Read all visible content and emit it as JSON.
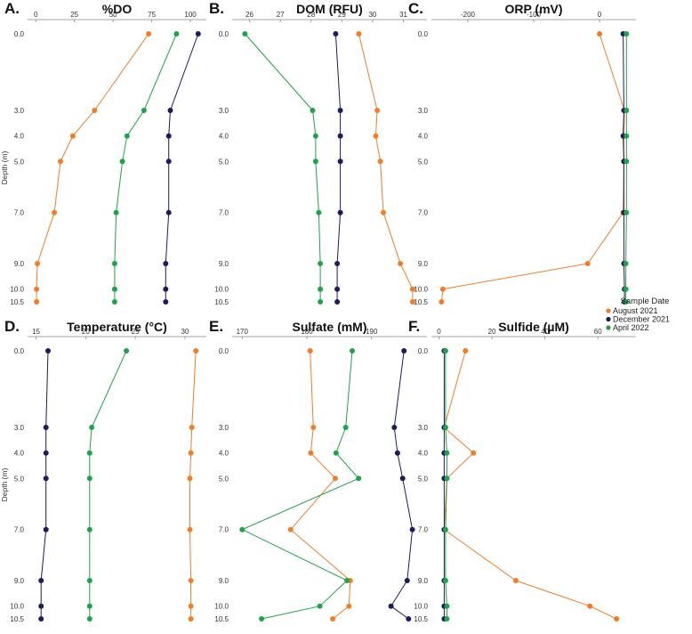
{
  "colors": {
    "August 2021": "#ef7e2b",
    "December 2021": "#1b1b5e",
    "April 2022": "#21a24a"
  },
  "legend": {
    "title": "Sample Date",
    "entries": [
      {
        "label": "August 2021",
        "color": "#ef7e2b"
      },
      {
        "label": "December 2021",
        "color": "#1b1b5e"
      },
      {
        "label": "April 2022",
        "color": "#21a24a"
      }
    ]
  },
  "chart_data": [
    {
      "type": "line",
      "panel": "A.",
      "title": "%DO",
      "xlabel": "",
      "ylabel": "Depth (m)",
      "xlim": [
        -3,
        108
      ],
      "xticks": [
        0,
        25,
        50,
        75,
        100
      ],
      "ylim": [
        0,
        10.5
      ],
      "yticks": [
        0.0,
        3.0,
        4.0,
        5.0,
        7.0,
        9.0,
        10.0,
        10.5
      ],
      "series": [
        {
          "name": "August 2021",
          "points": [
            [
              73,
              0
            ],
            [
              38,
              3
            ],
            [
              24,
              4
            ],
            [
              16,
              5
            ],
            [
              12,
              7
            ],
            [
              1,
              9
            ],
            [
              0.5,
              10
            ],
            [
              0.5,
              10.5
            ]
          ]
        },
        {
          "name": "December 2021",
          "points": [
            [
              105,
              0
            ],
            [
              87,
              3
            ],
            [
              86,
              4
            ],
            [
              86,
              5
            ],
            [
              86,
              7
            ],
            [
              84,
              9
            ],
            [
              84,
              10
            ],
            [
              84,
              10.5
            ]
          ]
        },
        {
          "name": "April 2022",
          "points": [
            [
              91,
              0
            ],
            [
              70,
              3
            ],
            [
              59,
              4
            ],
            [
              56,
              5
            ],
            [
              52,
              7
            ],
            [
              51,
              9
            ],
            [
              51,
              10
            ],
            [
              51,
              10.5
            ]
          ]
        }
      ]
    },
    {
      "type": "line",
      "panel": "B.",
      "title": "DOM (RFU)",
      "xlabel": "",
      "ylabel": "",
      "xlim": [
        25.55,
        31.65
      ],
      "xticks": [
        26,
        27,
        28,
        29,
        30,
        31
      ],
      "ylim": [
        0,
        10.5
      ],
      "yticks": [
        0.0,
        3.0,
        4.0,
        5.0,
        7.0,
        9.0,
        10.0,
        10.5
      ],
      "series": [
        {
          "name": "August 2021",
          "points": [
            [
              29.55,
              0
            ],
            [
              30.15,
              3
            ],
            [
              30.1,
              4
            ],
            [
              30.25,
              5
            ],
            [
              30.35,
              7
            ],
            [
              30.9,
              9
            ],
            [
              31.3,
              10
            ],
            [
              31.3,
              10.5
            ]
          ]
        },
        {
          "name": "December 2021",
          "points": [
            [
              28.8,
              0
            ],
            [
              28.95,
              3
            ],
            [
              28.95,
              4
            ],
            [
              28.95,
              5
            ],
            [
              28.95,
              7
            ],
            [
              28.85,
              9
            ],
            [
              28.85,
              10
            ],
            [
              28.85,
              10.5
            ]
          ]
        },
        {
          "name": "April 2022",
          "points": [
            [
              25.85,
              0
            ],
            [
              28.05,
              3
            ],
            [
              28.15,
              4
            ],
            [
              28.15,
              5
            ],
            [
              28.25,
              7
            ],
            [
              28.3,
              9
            ],
            [
              28.3,
              10
            ],
            [
              28.3,
              10.5
            ]
          ]
        }
      ]
    },
    {
      "type": "line",
      "panel": "C.",
      "title": "ORP (mV)",
      "xlabel": "",
      "ylabel": "",
      "xlim": [
        -250,
        50
      ],
      "xticks": [
        -200,
        -100,
        0
      ],
      "ylim": [
        0,
        10.5
      ],
      "yticks": [
        0.0,
        3.0,
        4.0,
        5.0,
        7.0,
        9.0,
        10.0,
        10.5
      ],
      "series": [
        {
          "name": "August 2021",
          "points": [
            [
              0,
              0
            ],
            [
              38,
              3
            ],
            [
              37,
              4
            ],
            [
              37,
              5
            ],
            [
              36,
              7
            ],
            [
              -18,
              9
            ],
            [
              -238,
              10
            ],
            [
              -240,
              10.5
            ]
          ]
        },
        {
          "name": "December 2021",
          "points": [
            [
              36,
              0
            ],
            [
              37,
              3
            ],
            [
              36,
              4
            ],
            [
              37,
              5
            ],
            [
              37,
              7
            ],
            [
              37,
              9
            ],
            [
              38,
              10
            ],
            [
              38,
              10.5
            ]
          ]
        },
        {
          "name": "April 2022",
          "points": [
            [
              41,
              0
            ],
            [
              41,
              3
            ],
            [
              41,
              4
            ],
            [
              41,
              5
            ],
            [
              41,
              7
            ],
            [
              40,
              9
            ],
            [
              40,
              10
            ],
            [
              40,
              10.5
            ]
          ]
        }
      ]
    },
    {
      "type": "line",
      "panel": "D.",
      "title": "Temperature (°C)",
      "xlabel": "",
      "ylabel": "Depth (m)",
      "xlim": [
        14.5,
        31.8
      ],
      "xticks": [
        15,
        20,
        25,
        30
      ],
      "ylim": [
        0,
        10.5
      ],
      "yticks": [
        0.0,
        3.0,
        4.0,
        5.0,
        7.0,
        9.0,
        10.0,
        10.5
      ],
      "series": [
        {
          "name": "August 2021",
          "points": [
            [
              31.1,
              0
            ],
            [
              30.7,
              3
            ],
            [
              30.6,
              4
            ],
            [
              30.5,
              5
            ],
            [
              30.5,
              7
            ],
            [
              30.6,
              9
            ],
            [
              30.6,
              10
            ],
            [
              30.6,
              10.5
            ]
          ]
        },
        {
          "name": "December 2021",
          "points": [
            [
              16.2,
              0
            ],
            [
              16.0,
              3
            ],
            [
              16.0,
              4
            ],
            [
              16.0,
              5
            ],
            [
              16.0,
              7
            ],
            [
              15.5,
              9
            ],
            [
              15.5,
              10
            ],
            [
              15.5,
              10.5
            ]
          ]
        },
        {
          "name": "April 2022",
          "points": [
            [
              24.1,
              0
            ],
            [
              20.6,
              3
            ],
            [
              20.4,
              4
            ],
            [
              20.4,
              5
            ],
            [
              20.4,
              7
            ],
            [
              20.4,
              9
            ],
            [
              20.4,
              10
            ],
            [
              20.4,
              10.5
            ]
          ]
        }
      ]
    },
    {
      "type": "line",
      "panel": "E.",
      "title": "Sulfate (mM)",
      "xlabel": "",
      "ylabel": "",
      "xlim": [
        169,
        198
      ],
      "xticks": [
        170,
        180,
        190
      ],
      "ylim": [
        0,
        10.5
      ],
      "yticks": [
        0.0,
        3.0,
        4.0,
        5.0,
        7.0,
        9.0,
        10.0,
        10.5
      ],
      "series": [
        {
          "name": "August 2021",
          "points": [
            [
              180.5,
              0
            ],
            [
              181,
              3
            ],
            [
              180.6,
              4
            ],
            [
              184.4,
              5
            ],
            [
              177.5,
              7
            ],
            [
              186.7,
              9
            ],
            [
              186.5,
              10
            ],
            [
              184,
              10.5
            ]
          ]
        },
        {
          "name": "December 2021",
          "points": [
            [
              195,
              0
            ],
            [
              193.5,
              3
            ],
            [
              194,
              4
            ],
            [
              194.8,
              5
            ],
            [
              196.3,
              7
            ],
            [
              195.5,
              9
            ],
            [
              193,
              10
            ],
            [
              195.7,
              10.5
            ]
          ]
        },
        {
          "name": "April 2022",
          "points": [
            [
              187,
              0
            ],
            [
              186,
              3
            ],
            [
              184.5,
              4
            ],
            [
              188,
              5
            ],
            [
              170,
              7
            ],
            [
              186.2,
              9
            ],
            [
              182,
              10
            ],
            [
              173,
              10.5
            ]
          ]
        }
      ]
    },
    {
      "type": "line",
      "panel": "F.",
      "title": "Sulfide (µM)",
      "xlabel": "",
      "ylabel": "",
      "xlim": [
        -1.5,
        73
      ],
      "xticks": [
        0,
        20,
        40,
        60
      ],
      "ylim": [
        0,
        10.5
      ],
      "yticks": [
        0.0,
        3.0,
        4.0,
        5.0,
        7.0,
        9.0,
        10.0,
        10.5
      ],
      "series": [
        {
          "name": "August 2021",
          "points": [
            [
              10,
              0
            ],
            [
              2,
              3
            ],
            [
              13,
              4
            ],
            [
              3,
              5
            ],
            [
              2,
              7
            ],
            [
              29,
              9
            ],
            [
              57,
              10
            ],
            [
              67,
              10.5
            ]
          ]
        },
        {
          "name": "December 2021",
          "points": [
            [
              2,
              0
            ],
            [
              2,
              3
            ],
            [
              2,
              4
            ],
            [
              2,
              5
            ],
            [
              2,
              7
            ],
            [
              2,
              9
            ],
            [
              2,
              10
            ],
            [
              2,
              10.5
            ]
          ]
        },
        {
          "name": "April 2022",
          "points": [
            [
              2.5,
              0
            ],
            [
              2.5,
              3
            ],
            [
              3,
              4
            ],
            [
              3,
              5
            ],
            [
              2.5,
              7
            ],
            [
              2.5,
              9
            ],
            [
              3,
              10
            ],
            [
              3,
              10.5
            ]
          ]
        }
      ]
    }
  ]
}
